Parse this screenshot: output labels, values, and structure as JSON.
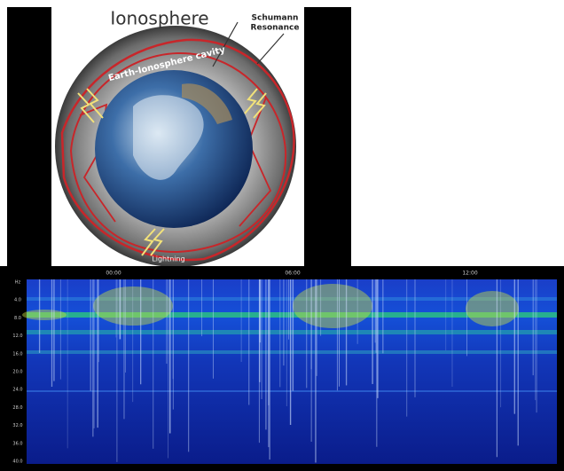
{
  "diagram": {
    "title": "Ionosphere",
    "schumann": [
      "Schumann",
      "Resonance"
    ],
    "cavity": "Earth-Ionosphere cavity",
    "lightning": "Lightning"
  },
  "spectrogram": {
    "time_labels": [
      "00:00",
      "06:00",
      "12:00"
    ],
    "y_labels": [
      "Hz",
      "4.0",
      "8.0",
      "12.0",
      "16.0",
      "20.0",
      "24.0",
      "28.0",
      "32.0",
      "36.0",
      "40.0"
    ]
  }
}
